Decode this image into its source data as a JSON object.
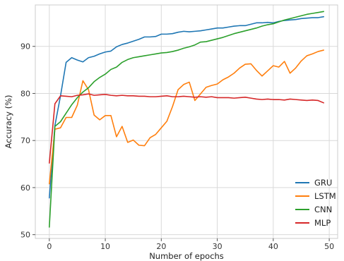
{
  "chart_data": {
    "type": "line",
    "title": "",
    "xlabel": "Number of epochs",
    "ylabel": "Accuracy (%)",
    "xlim": [
      -2.5,
      51.5
    ],
    "ylim": [
      49.2,
      98.8
    ],
    "xticks": [
      0,
      10,
      20,
      30,
      40,
      50
    ],
    "yticks": [
      50,
      60,
      70,
      80,
      90
    ],
    "grid": true,
    "legend_position": "lower-right",
    "x": [
      0,
      1,
      2,
      3,
      4,
      5,
      6,
      7,
      8,
      9,
      10,
      11,
      12,
      13,
      14,
      15,
      16,
      17,
      18,
      19,
      20,
      21,
      22,
      23,
      24,
      25,
      26,
      27,
      28,
      29,
      30,
      31,
      32,
      33,
      34,
      35,
      36,
      37,
      38,
      39,
      40,
      41,
      42,
      43,
      44,
      45,
      46,
      47,
      48,
      49
    ],
    "series": [
      {
        "name": "GRU",
        "color": "#1f77b4",
        "values": [
          57.8,
          73.2,
          79.5,
          86.6,
          87.6,
          87.1,
          86.7,
          87.6,
          87.9,
          88.4,
          88.8,
          89.0,
          89.9,
          90.4,
          90.7,
          91.1,
          91.5,
          92.0,
          92.0,
          92.1,
          92.6,
          92.6,
          92.7,
          93.0,
          93.2,
          93.1,
          93.2,
          93.3,
          93.5,
          93.7,
          93.9,
          93.9,
          94.1,
          94.3,
          94.4,
          94.4,
          94.7,
          95.0,
          95.0,
          95.1,
          95.0,
          95.3,
          95.5,
          95.6,
          95.7,
          95.9,
          96.0,
          96.1,
          96.1,
          96.3
        ]
      },
      {
        "name": "LSTM",
        "color": "#ff7f0e",
        "values": [
          60.8,
          72.4,
          72.7,
          74.9,
          74.9,
          77.5,
          82.7,
          80.8,
          75.4,
          74.4,
          75.3,
          75.3,
          70.8,
          73.0,
          69.6,
          70.1,
          69.0,
          68.9,
          70.6,
          71.3,
          72.7,
          74.1,
          77.2,
          80.8,
          81.9,
          82.4,
          78.5,
          79.9,
          81.3,
          81.7,
          82.0,
          82.9,
          83.5,
          84.3,
          85.4,
          86.2,
          86.3,
          84.9,
          83.7,
          84.8,
          85.9,
          85.6,
          86.8,
          84.3,
          85.4,
          86.9,
          88.0,
          88.4,
          88.9,
          89.2
        ]
      },
      {
        "name": "CNN",
        "color": "#2ca02c",
        "values": [
          51.6,
          73.0,
          74.0,
          75.8,
          77.6,
          79.1,
          80.3,
          81.2,
          82.5,
          83.4,
          84.1,
          85.1,
          85.6,
          86.6,
          87.2,
          87.6,
          87.8,
          88.0,
          88.2,
          88.4,
          88.6,
          88.7,
          88.9,
          89.2,
          89.6,
          89.9,
          90.3,
          90.9,
          91.0,
          91.3,
          91.6,
          91.9,
          92.3,
          92.7,
          93.0,
          93.3,
          93.6,
          93.9,
          94.3,
          94.6,
          94.8,
          95.2,
          95.6,
          95.9,
          96.2,
          96.5,
          96.8,
          97.0,
          97.2,
          97.4
        ]
      },
      {
        "name": "MLP",
        "color": "#d62728",
        "values": [
          65.2,
          77.8,
          79.5,
          79.4,
          79.3,
          79.6,
          79.7,
          79.9,
          79.6,
          79.7,
          79.8,
          79.6,
          79.5,
          79.6,
          79.5,
          79.5,
          79.4,
          79.4,
          79.3,
          79.3,
          79.4,
          79.5,
          79.3,
          79.3,
          79.4,
          79.3,
          79.2,
          79.3,
          79.2,
          79.3,
          79.1,
          79.1,
          79.1,
          79.0,
          79.1,
          79.2,
          79.0,
          78.8,
          78.7,
          78.8,
          78.7,
          78.7,
          78.6,
          78.8,
          78.7,
          78.6,
          78.5,
          78.6,
          78.5,
          78.0
        ]
      }
    ]
  }
}
